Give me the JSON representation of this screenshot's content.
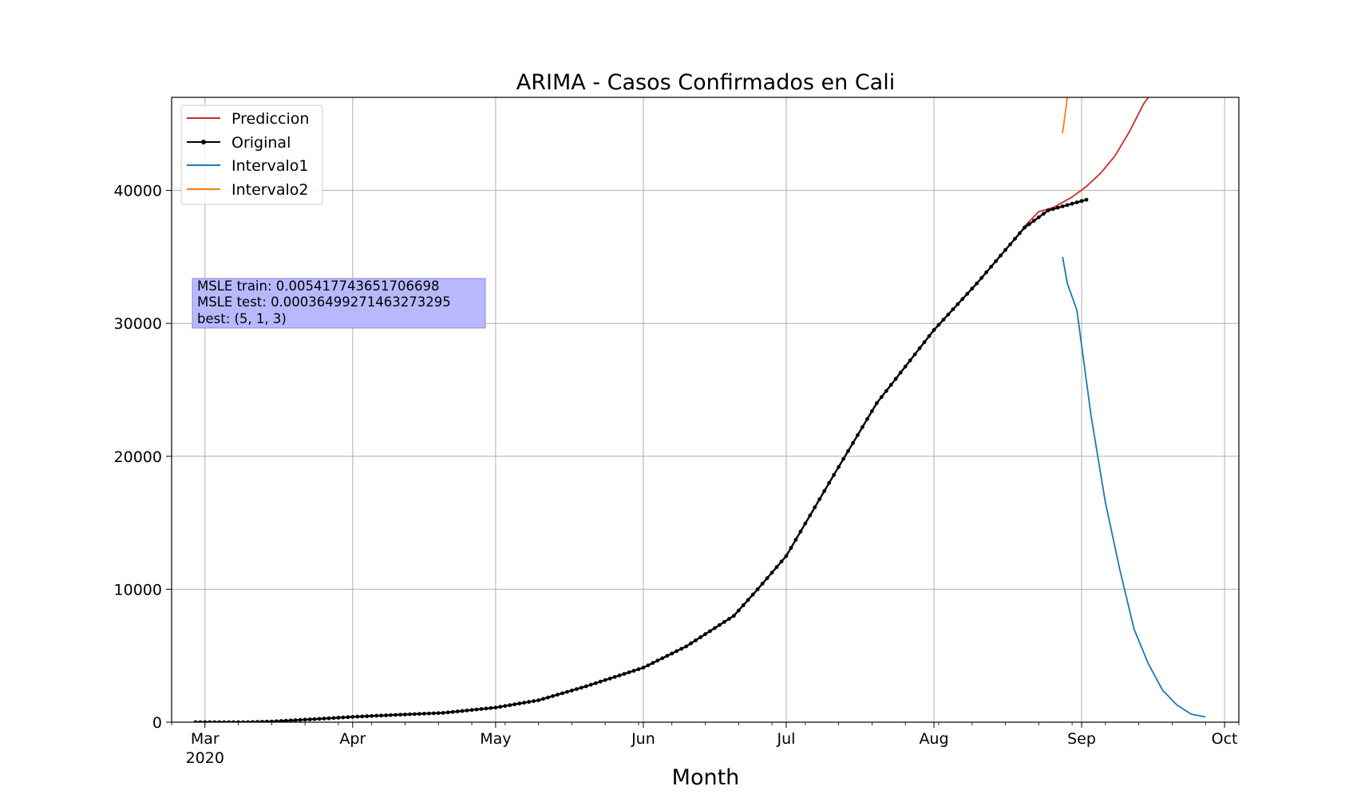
{
  "chart_data": {
    "type": "line",
    "title": "ARIMA - Casos Confirmados en Cali",
    "xlabel": "Month",
    "ylabel": "",
    "x_type": "date",
    "xlim": [
      "2020-02-23",
      "2020-10-04"
    ],
    "ylim": [
      0,
      47000
    ],
    "grid": true,
    "legend_position": "top-left",
    "x_ticks": [
      {
        "date": "2020-03-01",
        "label": "Mar",
        "sublabel": "2020"
      },
      {
        "date": "2020-04-01",
        "label": "Apr"
      },
      {
        "date": "2020-05-01",
        "label": "May"
      },
      {
        "date": "2020-06-01",
        "label": "Jun"
      },
      {
        "date": "2020-07-01",
        "label": "Jul"
      },
      {
        "date": "2020-08-01",
        "label": "Aug"
      },
      {
        "date": "2020-09-01",
        "label": "Sep"
      },
      {
        "date": "2020-10-01",
        "label": "Oct"
      }
    ],
    "y_ticks": [
      0,
      10000,
      20000,
      30000,
      40000
    ],
    "annotation": {
      "lines": [
        "MSLE train: 0.005417743651706698",
        "MSLE test: 0.00036499271463273295",
        "best: (5, 1, 3)"
      ],
      "background": "#b8b8ff"
    },
    "series": [
      {
        "name": "Original",
        "color": "#000000",
        "marker": true,
        "points": [
          [
            "2020-02-28",
            0
          ],
          [
            "2020-03-10",
            0
          ],
          [
            "2020-03-15",
            50
          ],
          [
            "2020-03-25",
            250
          ],
          [
            "2020-04-01",
            400
          ],
          [
            "2020-04-10",
            550
          ],
          [
            "2020-04-20",
            700
          ],
          [
            "2020-05-01",
            1100
          ],
          [
            "2020-05-10",
            1650
          ],
          [
            "2020-05-20",
            2700
          ],
          [
            "2020-06-01",
            4100
          ],
          [
            "2020-06-10",
            5700
          ],
          [
            "2020-06-20",
            8000
          ],
          [
            "2020-06-25",
            10000
          ],
          [
            "2020-07-01",
            12500
          ],
          [
            "2020-07-10",
            18000
          ],
          [
            "2020-07-20",
            24000
          ],
          [
            "2020-08-01",
            29500
          ],
          [
            "2020-08-10",
            33000
          ],
          [
            "2020-08-20",
            37200
          ],
          [
            "2020-08-25",
            38500
          ],
          [
            "2020-09-01",
            39200
          ],
          [
            "2020-09-02",
            39300
          ]
        ]
      },
      {
        "name": "Prediccion",
        "color": "#d62728",
        "marker": false,
        "points": [
          [
            "2020-08-20",
            37300
          ],
          [
            "2020-08-23",
            38400
          ],
          [
            "2020-08-26",
            38700
          ],
          [
            "2020-08-30",
            39500
          ],
          [
            "2020-09-02",
            40300
          ],
          [
            "2020-09-05",
            41300
          ],
          [
            "2020-09-08",
            42600
          ],
          [
            "2020-09-11",
            44400
          ],
          [
            "2020-09-14",
            46500
          ],
          [
            "2020-09-15",
            47000
          ]
        ]
      },
      {
        "name": "Intervalo1",
        "color": "#1f77b4",
        "marker": false,
        "points": [
          [
            "2020-08-28",
            35000
          ],
          [
            "2020-08-29",
            33000
          ],
          [
            "2020-08-31",
            31000
          ],
          [
            "2020-09-03",
            23000
          ],
          [
            "2020-09-06",
            16500
          ],
          [
            "2020-09-09",
            11500
          ],
          [
            "2020-09-12",
            7000
          ],
          [
            "2020-09-15",
            4400
          ],
          [
            "2020-09-18",
            2400
          ],
          [
            "2020-09-21",
            1300
          ],
          [
            "2020-09-24",
            600
          ],
          [
            "2020-09-27",
            400
          ]
        ]
      },
      {
        "name": "Intervalo2",
        "color": "#ff7f0e",
        "marker": false,
        "points": [
          [
            "2020-08-28",
            44300
          ],
          [
            "2020-08-29",
            47000
          ]
        ]
      }
    ]
  }
}
